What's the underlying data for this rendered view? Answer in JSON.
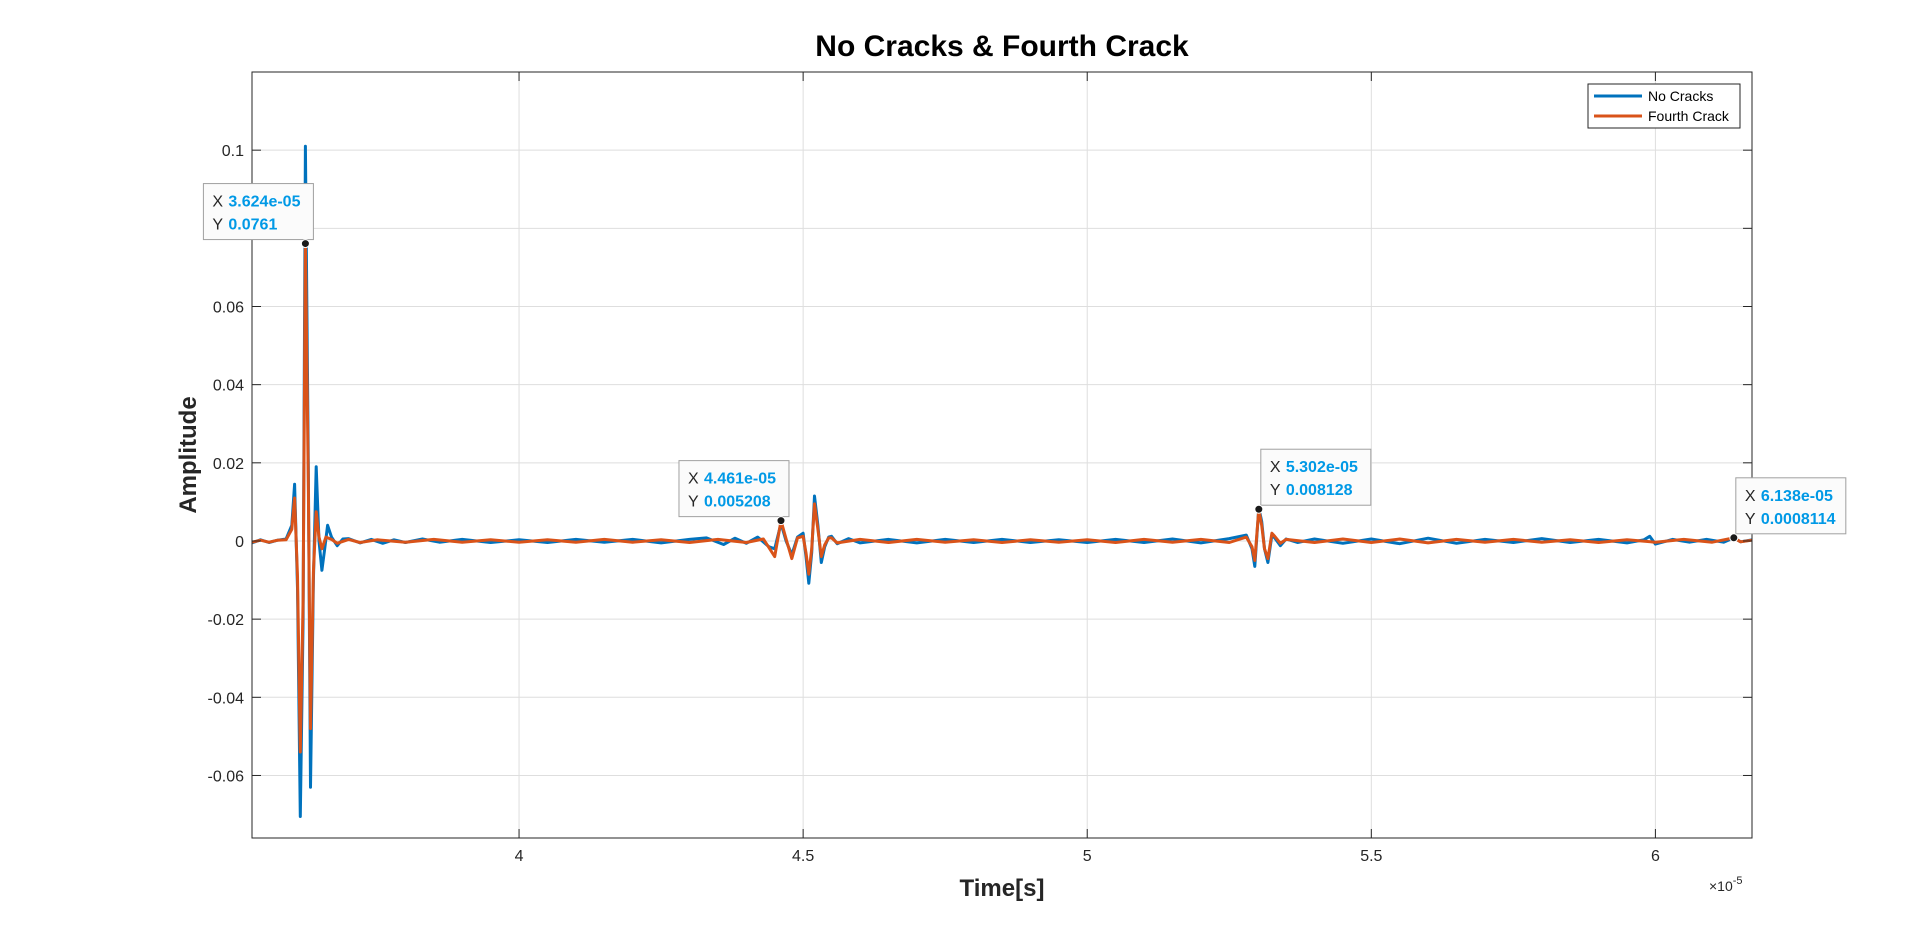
{
  "chart_data": {
    "type": "line",
    "title": "No Cracks & Fourth Crack",
    "xlabel": "Time[s]",
    "ylabel": "Amplitude",
    "x_exponent_base": "×10",
    "x_exponent_power": "-5",
    "xlim": [
      3.53,
      6.17
    ],
    "ylim": [
      -0.076,
      0.12
    ],
    "x_ticks": [
      {
        "value": 4.0,
        "label": "4"
      },
      {
        "value": 4.5,
        "label": "4.5"
      },
      {
        "value": 5.0,
        "label": "5"
      },
      {
        "value": 5.5,
        "label": "5.5"
      },
      {
        "value": 6.0,
        "label": "6"
      }
    ],
    "y_ticks": [
      {
        "value": 0.1,
        "label": "0.1"
      },
      {
        "value": 0.08,
        "label": "0.08"
      },
      {
        "value": 0.06,
        "label": "0.06"
      },
      {
        "value": 0.04,
        "label": "0.04"
      },
      {
        "value": 0.02,
        "label": "0.02"
      },
      {
        "value": 0.0,
        "label": "0"
      },
      {
        "value": -0.02,
        "label": "-0.02"
      },
      {
        "value": -0.04,
        "label": "-0.04"
      },
      {
        "value": -0.06,
        "label": "-0.06"
      }
    ],
    "grid": true,
    "legend_position": "top-right",
    "series": [
      {
        "name": "No Cracks",
        "color": "#0072bd",
        "points": [
          [
            3.53,
            -0.0005
          ],
          [
            3.545,
            0.0003
          ],
          [
            3.56,
            -0.0004
          ],
          [
            3.575,
            0.0002
          ],
          [
            3.59,
            0.0005
          ],
          [
            3.6,
            0.004
          ],
          [
            3.605,
            0.0145
          ],
          [
            3.61,
            -0.012
          ],
          [
            3.615,
            -0.0705
          ],
          [
            3.62,
            -0.02
          ],
          [
            3.624,
            0.101
          ],
          [
            3.629,
            0.02
          ],
          [
            3.633,
            -0.063
          ],
          [
            3.638,
            -0.01
          ],
          [
            3.643,
            0.019
          ],
          [
            3.648,
            0.0
          ],
          [
            3.653,
            -0.0075
          ],
          [
            3.658,
            -0.002
          ],
          [
            3.663,
            0.004
          ],
          [
            3.67,
            0.001
          ],
          [
            3.68,
            -0.0012
          ],
          [
            3.69,
            0.0005
          ],
          [
            3.7,
            0.0006
          ],
          [
            3.72,
            -0.0005
          ],
          [
            3.74,
            0.0004
          ],
          [
            3.76,
            -0.0006
          ],
          [
            3.78,
            0.0003
          ],
          [
            3.8,
            -0.0004
          ],
          [
            3.83,
            0.0005
          ],
          [
            3.86,
            -0.0003
          ],
          [
            3.9,
            0.0004
          ],
          [
            3.95,
            -0.0004
          ],
          [
            4.0,
            0.0003
          ],
          [
            4.05,
            -0.0004
          ],
          [
            4.1,
            0.0004
          ],
          [
            4.15,
            -0.0003
          ],
          [
            4.2,
            0.0004
          ],
          [
            4.25,
            -0.0005
          ],
          [
            4.3,
            0.0004
          ],
          [
            4.33,
            0.0008
          ],
          [
            4.36,
            -0.0009
          ],
          [
            4.38,
            0.0007
          ],
          [
            4.4,
            -0.0006
          ],
          [
            4.42,
            0.001
          ],
          [
            4.44,
            -0.0015
          ],
          [
            4.45,
            -0.002
          ],
          [
            4.461,
            0.0045
          ],
          [
            4.47,
            0.0
          ],
          [
            4.48,
            -0.0035
          ],
          [
            4.49,
            0.001
          ],
          [
            4.5,
            0.002
          ],
          [
            4.505,
            -0.004
          ],
          [
            4.51,
            -0.0108
          ],
          [
            4.515,
            -0.003
          ],
          [
            4.52,
            0.0115
          ],
          [
            4.526,
            0.004
          ],
          [
            4.532,
            -0.0055
          ],
          [
            4.538,
            -0.0015
          ],
          [
            4.545,
            0.001
          ],
          [
            4.55,
            0.0012
          ],
          [
            4.56,
            -0.0007
          ],
          [
            4.58,
            0.0006
          ],
          [
            4.6,
            -0.0005
          ],
          [
            4.65,
            0.0004
          ],
          [
            4.7,
            -0.0005
          ],
          [
            4.75,
            0.0004
          ],
          [
            4.8,
            -0.0004
          ],
          [
            4.85,
            0.0004
          ],
          [
            4.9,
            -0.0004
          ],
          [
            4.95,
            0.0003
          ],
          [
            5.0,
            -0.0004
          ],
          [
            5.05,
            0.0004
          ],
          [
            5.1,
            -0.0004
          ],
          [
            5.15,
            0.0005
          ],
          [
            5.2,
            -0.0005
          ],
          [
            5.25,
            0.0006
          ],
          [
            5.28,
            0.0015
          ],
          [
            5.29,
            -0.002
          ],
          [
            5.295,
            -0.0065
          ],
          [
            5.302,
            0.0085
          ],
          [
            5.307,
            0.005
          ],
          [
            5.312,
            -0.002
          ],
          [
            5.318,
            -0.0055
          ],
          [
            5.325,
            0.0015
          ],
          [
            5.33,
            0.0008
          ],
          [
            5.34,
            -0.0012
          ],
          [
            5.35,
            0.0005
          ],
          [
            5.37,
            -0.0004
          ],
          [
            5.4,
            0.0005
          ],
          [
            5.45,
            -0.0006
          ],
          [
            5.5,
            0.0005
          ],
          [
            5.55,
            -0.0007
          ],
          [
            5.6,
            0.0007
          ],
          [
            5.65,
            -0.0006
          ],
          [
            5.7,
            0.0004
          ],
          [
            5.75,
            -0.0004
          ],
          [
            5.8,
            0.0006
          ],
          [
            5.85,
            -0.0004
          ],
          [
            5.9,
            0.0004
          ],
          [
            5.95,
            -0.0005
          ],
          [
            5.98,
            0.0003
          ],
          [
            5.99,
            0.0012
          ],
          [
            6.0,
            -0.0008
          ],
          [
            6.03,
            0.0004
          ],
          [
            6.06,
            -0.0003
          ],
          [
            6.09,
            0.0004
          ],
          [
            6.12,
            -0.0003
          ],
          [
            6.138,
            0.0008
          ],
          [
            6.15,
            -0.0002
          ],
          [
            6.17,
            0.0003
          ]
        ]
      },
      {
        "name": "Fourth Crack",
        "color": "#d95319",
        "points": [
          [
            3.53,
            -0.0003
          ],
          [
            3.545,
            0.0002
          ],
          [
            3.56,
            -0.0003
          ],
          [
            3.575,
            0.0002
          ],
          [
            3.59,
            0.0003
          ],
          [
            3.6,
            0.003
          ],
          [
            3.605,
            0.011
          ],
          [
            3.61,
            -0.009
          ],
          [
            3.615,
            -0.054
          ],
          [
            3.62,
            -0.015
          ],
          [
            3.624,
            0.0761
          ],
          [
            3.629,
            0.015
          ],
          [
            3.633,
            -0.048
          ],
          [
            3.638,
            -0.008
          ],
          [
            3.643,
            0.0075
          ],
          [
            3.648,
            0.001
          ],
          [
            3.653,
            -0.002
          ],
          [
            3.66,
            0.001
          ],
          [
            3.67,
            0.0004
          ],
          [
            3.68,
            -0.0006
          ],
          [
            3.7,
            0.0004
          ],
          [
            3.72,
            -0.0004
          ],
          [
            3.75,
            0.0003
          ],
          [
            3.8,
            -0.0003
          ],
          [
            3.85,
            0.0004
          ],
          [
            3.9,
            -0.0003
          ],
          [
            3.95,
            0.0003
          ],
          [
            4.0,
            -0.0003
          ],
          [
            4.05,
            0.0003
          ],
          [
            4.1,
            -0.0003
          ],
          [
            4.15,
            0.0004
          ],
          [
            4.2,
            -0.0003
          ],
          [
            4.25,
            0.0003
          ],
          [
            4.3,
            -0.0004
          ],
          [
            4.35,
            0.0004
          ],
          [
            4.4,
            -0.0004
          ],
          [
            4.43,
            0.0005
          ],
          [
            4.45,
            -0.004
          ],
          [
            4.461,
            0.0052
          ],
          [
            4.47,
            0.0005
          ],
          [
            4.48,
            -0.0045
          ],
          [
            4.49,
            0.0008
          ],
          [
            4.5,
            0.0012
          ],
          [
            4.505,
            -0.003
          ],
          [
            4.51,
            -0.0085
          ],
          [
            4.515,
            -0.002
          ],
          [
            4.52,
            0.0095
          ],
          [
            4.526,
            0.003
          ],
          [
            4.532,
            -0.004
          ],
          [
            4.538,
            -0.001
          ],
          [
            4.545,
            0.0008
          ],
          [
            4.55,
            0.0008
          ],
          [
            4.56,
            -0.0005
          ],
          [
            4.6,
            0.0004
          ],
          [
            4.65,
            -0.0004
          ],
          [
            4.7,
            0.0004
          ],
          [
            4.75,
            -0.0003
          ],
          [
            4.8,
            0.0003
          ],
          [
            4.85,
            -0.0004
          ],
          [
            4.9,
            0.0003
          ],
          [
            4.95,
            -0.0003
          ],
          [
            5.0,
            0.0003
          ],
          [
            5.05,
            -0.0004
          ],
          [
            5.1,
            0.0004
          ],
          [
            5.15,
            -0.0003
          ],
          [
            5.2,
            0.0004
          ],
          [
            5.25,
            -0.0004
          ],
          [
            5.28,
            0.001
          ],
          [
            5.29,
            -0.0015
          ],
          [
            5.295,
            -0.005
          ],
          [
            5.302,
            0.0081
          ],
          [
            5.307,
            0.004
          ],
          [
            5.312,
            -0.002
          ],
          [
            5.318,
            -0.0045
          ],
          [
            5.325,
            0.002
          ],
          [
            5.33,
            0.0012
          ],
          [
            5.34,
            -0.0006
          ],
          [
            5.35,
            0.0004
          ],
          [
            5.4,
            -0.0004
          ],
          [
            5.45,
            0.0005
          ],
          [
            5.5,
            -0.0004
          ],
          [
            5.55,
            0.0005
          ],
          [
            5.6,
            -0.0005
          ],
          [
            5.65,
            0.0004
          ],
          [
            5.7,
            -0.0003
          ],
          [
            5.75,
            0.0004
          ],
          [
            5.8,
            -0.0003
          ],
          [
            5.85,
            0.0003
          ],
          [
            5.9,
            -0.0004
          ],
          [
            5.95,
            0.0003
          ],
          [
            6.0,
            -0.0003
          ],
          [
            6.05,
            0.0004
          ],
          [
            6.1,
            -0.0003
          ],
          [
            6.138,
            0.0008
          ],
          [
            6.15,
            -0.0002
          ],
          [
            6.17,
            0.0002
          ]
        ]
      }
    ],
    "datatips": [
      {
        "x": 3.624,
        "y": 0.0761,
        "x_label": "X",
        "x_text": "3.624e-05",
        "y_label": "Y",
        "y_text": "0.0761",
        "side": "top-left"
      },
      {
        "x": 4.461,
        "y": 0.005208,
        "x_label": "X",
        "x_text": "4.461e-05",
        "y_label": "Y",
        "y_text": "0.005208",
        "side": "top-left"
      },
      {
        "x": 5.302,
        "y": 0.008128,
        "x_label": "X",
        "x_text": "5.302e-05",
        "y_label": "Y",
        "y_text": "0.008128",
        "side": "top-right"
      },
      {
        "x": 6.138,
        "y": 0.0008114,
        "x_label": "X",
        "x_text": "6.138e-05",
        "y_label": "Y",
        "y_text": "0.0008114",
        "side": "top-right"
      }
    ]
  }
}
